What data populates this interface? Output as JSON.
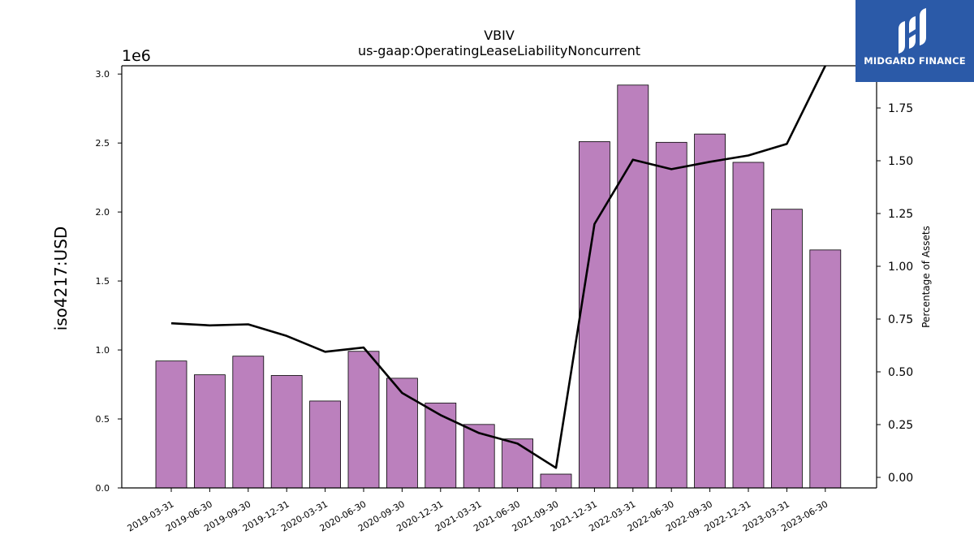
{
  "brand": {
    "name": "MIDGARD FINANCE",
    "bg_color": "#2b5aa8"
  },
  "chart_data": {
    "type": "bar",
    "title": "VBIV",
    "subtitle": "us-gaap:OperatingLeaseLiabilityNoncurrent",
    "ylabel": "iso4217:USD",
    "y2label": "Percentage of Assets",
    "y_offset_label": "1e6",
    "categories": [
      "2019-03-31",
      "2019-06-30",
      "2019-09-30",
      "2019-12-31",
      "2020-03-31",
      "2020-06-30",
      "2020-09-30",
      "2020-12-31",
      "2021-03-31",
      "2021-06-30",
      "2021-09-30",
      "2021-12-31",
      "2022-03-31",
      "2022-06-30",
      "2022-09-30",
      "2022-12-31",
      "2023-03-31",
      "2023-06-30"
    ],
    "series": [
      {
        "type": "bar",
        "axis": "left",
        "color": "#bb80bd",
        "values": [
          920000,
          820000,
          955000,
          815000,
          630000,
          990000,
          795000,
          615000,
          460000,
          355000,
          100000,
          2510000,
          2920000,
          2505000,
          2565000,
          2360000,
          2020000,
          1725000
        ]
      },
      {
        "type": "line",
        "axis": "right",
        "color": "#000000",
        "values": [
          0.73,
          0.72,
          0.725,
          0.67,
          0.595,
          0.615,
          0.4,
          0.295,
          0.21,
          0.16,
          0.045,
          1.2,
          1.505,
          1.46,
          1.495,
          1.525,
          1.58,
          1.95
        ]
      }
    ],
    "ylim": [
      0,
      3060000
    ],
    "y_ticks": [
      0,
      500000,
      1000000,
      1500000,
      2000000,
      2500000,
      3000000
    ],
    "y_tick_labels": [
      "0.0",
      "0.5",
      "1.0",
      "1.5",
      "2.0",
      "2.5",
      "3.0"
    ],
    "y2lim": [
      -0.05,
      1.95
    ],
    "y2_ticks": [
      0,
      0.25,
      0.5,
      0.75,
      1.0,
      1.25,
      1.5,
      1.75
    ],
    "y2_tick_labels": [
      "0.00",
      "0.25",
      "0.50",
      "0.75",
      "1.00",
      "1.25",
      "1.50",
      "1.75"
    ],
    "grid": false
  }
}
